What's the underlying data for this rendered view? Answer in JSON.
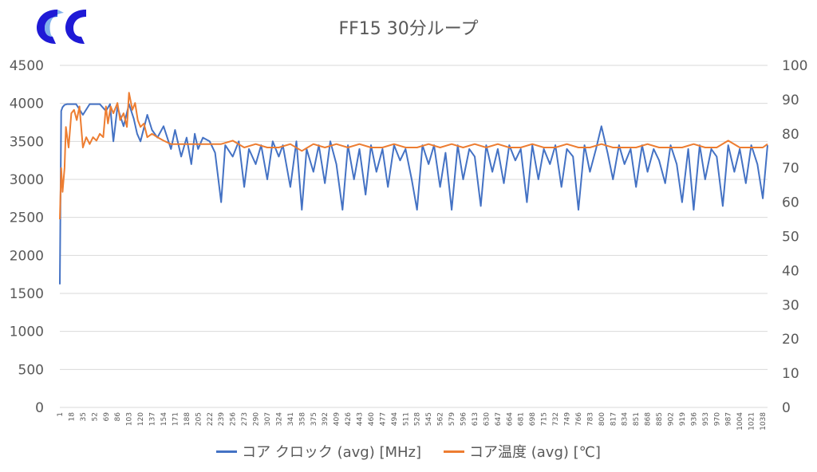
{
  "logo": {
    "name": "cc-logo",
    "colors": [
      "#1f1ad6",
      "#2b7de0"
    ]
  },
  "chart_data": {
    "type": "line",
    "title": "FF15 30分ループ",
    "left_axis": {
      "ylim": [
        0,
        4500
      ],
      "ticks": [
        "4500",
        "4000",
        "3500",
        "3000",
        "2500",
        "2000",
        "1500",
        "1000",
        "500",
        "0"
      ]
    },
    "right_axis": {
      "ylim": [
        0,
        100
      ],
      "ticks": [
        "100",
        "90",
        "80",
        "70",
        "60",
        "50",
        "40",
        "30",
        "20",
        "10",
        "0"
      ]
    },
    "x_tick_labels": [
      "1",
      "18",
      "35",
      "52",
      "69",
      "86",
      "103",
      "120",
      "137",
      "154",
      "171",
      "188",
      "205",
      "222",
      "239",
      "256",
      "273",
      "290",
      "307",
      "324",
      "341",
      "358",
      "375",
      "392",
      "409",
      "426",
      "443",
      "460",
      "477",
      "494",
      "511",
      "528",
      "545",
      "562",
      "579",
      "596",
      "613",
      "630",
      "647",
      "664",
      "681",
      "698",
      "715",
      "732",
      "749",
      "766",
      "783",
      "800",
      "817",
      "834",
      "851",
      "868",
      "885",
      "902",
      "919",
      "936",
      "953",
      "970",
      "987",
      "1004",
      "1021",
      "1038"
    ],
    "x_range": [
      1,
      1045
    ],
    "grid": true,
    "legend_position": "bottom",
    "series": [
      {
        "name": "コア クロック (avg) [MHz]",
        "axis": "left",
        "color": "#4472c4",
        "x": [
          1,
          3,
          5,
          8,
          12,
          18,
          25,
          35,
          45,
          52,
          60,
          69,
          75,
          80,
          86,
          95,
          103,
          110,
          115,
          120,
          130,
          137,
          145,
          154,
          165,
          171,
          180,
          188,
          195,
          200,
          205,
          212,
          222,
          230,
          239,
          245,
          256,
          265,
          273,
          280,
          290,
          298,
          307,
          315,
          324,
          330,
          341,
          350,
          358,
          365,
          375,
          383,
          392,
          400,
          409,
          418,
          426,
          435,
          443,
          452,
          460,
          468,
          477,
          485,
          494,
          503,
          511,
          520,
          528,
          536,
          545,
          553,
          562,
          570,
          579,
          588,
          596,
          605,
          613,
          622,
          630,
          639,
          647,
          656,
          664,
          673,
          681,
          690,
          698,
          707,
          715,
          724,
          732,
          741,
          749,
          758,
          766,
          775,
          783,
          792,
          800,
          809,
          817,
          826,
          834,
          843,
          851,
          860,
          868,
          877,
          885,
          894,
          902,
          911,
          919,
          928,
          936,
          945,
          953,
          962,
          970,
          979,
          987,
          996,
          1004,
          1013,
          1021,
          1030,
          1038,
          1045
        ],
        "y": [
          1620,
          3900,
          3950,
          3980,
          3990,
          3990,
          3990,
          3850,
          3990,
          3990,
          3990,
          3900,
          3990,
          3500,
          3950,
          3700,
          3990,
          3800,
          3600,
          3500,
          3850,
          3650,
          3550,
          3700,
          3400,
          3650,
          3300,
          3550,
          3200,
          3600,
          3400,
          3550,
          3500,
          3350,
          2700,
          3450,
          3300,
          3500,
          2900,
          3400,
          3200,
          3450,
          3000,
          3500,
          3300,
          3450,
          2900,
          3500,
          2600,
          3400,
          3100,
          3450,
          2950,
          3500,
          3200,
          2600,
          3450,
          3000,
          3400,
          2800,
          3450,
          3100,
          3400,
          2900,
          3450,
          3250,
          3400,
          3000,
          2600,
          3450,
          3200,
          3450,
          2900,
          3350,
          2600,
          3450,
          3000,
          3400,
          3300,
          2650,
          3450,
          3100,
          3400,
          2950,
          3450,
          3250,
          3400,
          2700,
          3450,
          3000,
          3400,
          3200,
          3450,
          2900,
          3400,
          3300,
          2600,
          3450,
          3100,
          3400,
          3700,
          3350,
          3000,
          3450,
          3200,
          3400,
          2900,
          3450,
          3100,
          3400,
          3250,
          2950,
          3450,
          3200,
          2700,
          3400,
          2600,
          3450,
          3000,
          3400,
          3300,
          2650,
          3450,
          3100,
          3400,
          2950,
          3450,
          3200,
          2750,
          3450
        ]
      },
      {
        "name": "コア温度 (avg) [℃]",
        "axis": "right",
        "color": "#ed7d31",
        "x": [
          1,
          3,
          5,
          8,
          10,
          14,
          18,
          22,
          26,
          30,
          35,
          40,
          45,
          50,
          55,
          60,
          65,
          69,
          72,
          76,
          80,
          86,
          90,
          95,
          100,
          103,
          108,
          112,
          116,
          120,
          125,
          130,
          137,
          145,
          154,
          165,
          171,
          188,
          205,
          222,
          239,
          256,
          273,
          290,
          307,
          324,
          341,
          358,
          375,
          392,
          409,
          426,
          443,
          460,
          477,
          494,
          511,
          528,
          545,
          562,
          579,
          596,
          613,
          630,
          647,
          664,
          681,
          698,
          715,
          732,
          749,
          766,
          783,
          800,
          817,
          834,
          851,
          868,
          885,
          902,
          919,
          936,
          953,
          970,
          987,
          1004,
          1021,
          1038,
          1045
        ],
        "y": [
          55,
          70,
          63,
          70,
          82,
          76,
          86,
          87,
          84,
          88,
          76,
          79,
          77,
          79,
          78,
          80,
          79,
          88,
          83,
          88,
          86,
          89,
          84,
          86,
          82,
          92,
          87,
          89,
          84,
          82,
          83,
          79,
          80,
          79,
          78,
          77,
          77,
          77,
          77,
          77,
          77,
          78,
          76,
          77,
          76,
          76,
          77,
          75,
          77,
          76,
          77,
          76,
          77,
          76,
          76,
          77,
          76,
          76,
          77,
          76,
          77,
          76,
          77,
          76,
          77,
          76,
          76,
          77,
          76,
          76,
          77,
          76,
          76,
          77,
          76,
          76,
          76,
          77,
          76,
          76,
          76,
          77,
          76,
          76,
          78,
          76,
          76,
          76,
          77
        ]
      }
    ]
  }
}
